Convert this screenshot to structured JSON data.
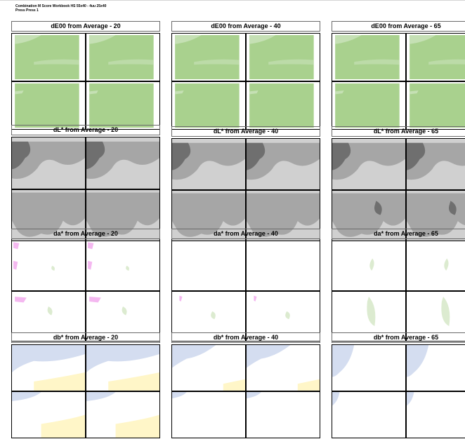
{
  "header": {
    "title": "Combination M Score Workbook HS 55x40 - 4uu 25x40",
    "subtitle": "Press Press 1"
  },
  "panels": [
    {
      "id": "de00-20",
      "title": "dE00 from Average - 20",
      "metric": "dE00"
    },
    {
      "id": "de00-40",
      "title": "dE00 from Average - 40",
      "metric": "dE00"
    },
    {
      "id": "de00-65",
      "title": "dE00 from Average - 65",
      "metric": "dE00"
    },
    {
      "id": "dl-20",
      "title": "dL* from Average - 20",
      "metric": "dL"
    },
    {
      "id": "dl-40",
      "title": "dL* from Average - 40",
      "metric": "dL"
    },
    {
      "id": "dl-65",
      "title": "dL* from Average - 65",
      "metric": "dL"
    },
    {
      "id": "da-20",
      "title": "da* from Average - 20",
      "metric": "da"
    },
    {
      "id": "da-40",
      "title": "da* from Average - 40",
      "metric": "da"
    },
    {
      "id": "da-65",
      "title": "da* from Average - 65",
      "metric": "da"
    },
    {
      "id": "db-20",
      "title": "db* from Average - 20",
      "metric": "db"
    },
    {
      "id": "db-40",
      "title": "db* from Average - 40",
      "metric": "db"
    },
    {
      "id": "db-65",
      "title": "db* from Average - 65",
      "metric": "db"
    }
  ],
  "colors": {
    "de00_fill": "#a9d18e",
    "de00_light": "#c5e0b4",
    "dl_base": "#d0d0d0",
    "dl_mid": "#a6a6a6",
    "dl_dark": "#6f6f6f",
    "da_pink": "#f4b8f0",
    "da_green": "#dcebd0",
    "db_blue": "#d4ddf0",
    "db_yellow": "#fff6c8"
  }
}
